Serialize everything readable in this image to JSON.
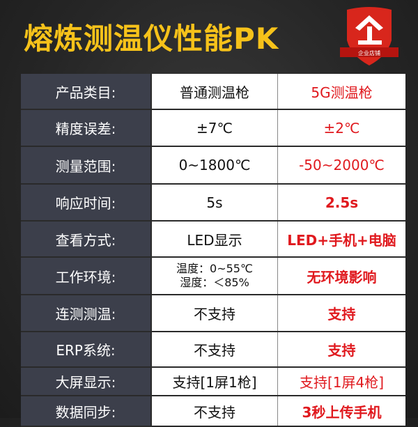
{
  "title": "熔炼测温仪性能PK",
  "logo": {
    "text": "企业店铺",
    "glyph": "企",
    "color": "#d8261c"
  },
  "colors": {
    "title": "#f6c21a",
    "highlight": "#e0191e",
    "label_bg": "#3c3f4b"
  },
  "rows": [
    {
      "label": "产品类目:",
      "normal": "普通测温枪",
      "pro": "5G测温枪",
      "bold": false
    },
    {
      "label": "精度误差:",
      "normal": "±7℃",
      "pro": "±2℃",
      "bold": false
    },
    {
      "label": "测量范围:",
      "normal": "0~1800℃",
      "pro": "-50~2000℃",
      "bold": false
    },
    {
      "label": "响应时间:",
      "normal": "5s",
      "pro": "2.5s",
      "bold": true
    },
    {
      "label": "查看方式:",
      "normal": "LED显示",
      "pro": "LED+手机+电脑",
      "bold": true
    },
    {
      "label": "工作环境:",
      "normal": "温度：0~55℃",
      "normal2": "湿度：＜85%",
      "pro": "无环境影响",
      "bold": true
    },
    {
      "label": "连测测温:",
      "normal": "不支持",
      "pro": "支持",
      "bold": true
    },
    {
      "label": "ERP系统:",
      "normal": "不支持",
      "pro": "支持",
      "bold": true
    },
    {
      "label": "大屏显示:",
      "normal": "支持[1屏1枪]",
      "pro": "支持[1屏4枪]",
      "bold": false
    },
    {
      "label": "数据同步:",
      "normal": "不支持",
      "pro": "3秒上传手机",
      "bold": true
    }
  ]
}
